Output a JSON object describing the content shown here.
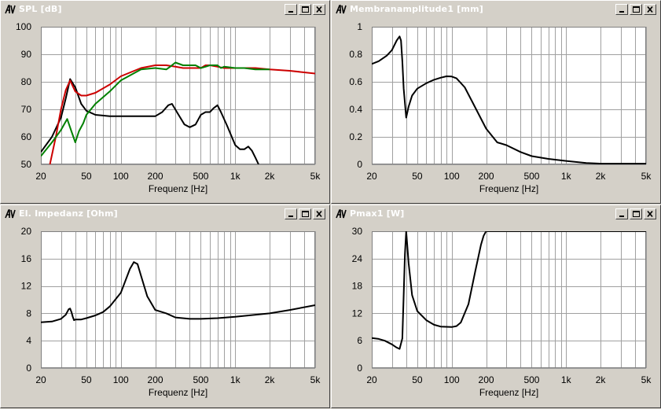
{
  "windows": [
    {
      "title": "SPL [dB]",
      "chart_data": {
        "type": "line",
        "xscale": "log",
        "xlim": [
          20,
          5000
        ],
        "ylim": [
          50,
          100
        ],
        "xlabel": "Frequenz [Hz]",
        "xticks": [
          20,
          50,
          100,
          200,
          500,
          1000,
          2000,
          5000
        ],
        "xticklabels": [
          "20",
          "50",
          "100",
          "200",
          "500",
          "1k",
          "2k",
          "5k"
        ],
        "yticks": [
          50,
          60,
          70,
          80,
          90,
          100
        ],
        "yticklabels": [
          "50",
          "60",
          "70",
          "80",
          "90",
          "100"
        ],
        "grid": true,
        "series": [
          {
            "color": "#000000",
            "x": [
              20,
              25,
              30,
              33,
              36,
              40,
              45,
              50,
              60,
              80,
              100,
              150,
              200,
              230,
              260,
              280,
              320,
              360,
              400,
              450,
              500,
              550,
              600,
              650,
              700,
              750,
              850,
              1000,
              1100,
              1200,
              1300,
              1400,
              1500,
              1600
            ],
            "y": [
              54.5,
              60.0,
              67.0,
              74.0,
              81.0,
              78.0,
              72.0,
              69.5,
              68.0,
              67.5,
              67.5,
              67.5,
              67.5,
              69.0,
              71.5,
              72.0,
              68.0,
              64.5,
              63.5,
              64.5,
              68.0,
              69.0,
              69.0,
              70.5,
              71.5,
              69.0,
              64.0,
              57.0,
              55.5,
              55.5,
              56.5,
              55.0,
              52.5,
              50.0
            ]
          },
          {
            "color": "#cc0000",
            "x": [
              24,
              27,
              30,
              33,
              36,
              40,
              45,
              50,
              60,
              80,
              100,
              150,
              200,
              250,
              300,
              350,
              400,
              450,
              500,
              550,
              600,
              700,
              800,
              1000,
              1500,
              2000,
              3000,
              5000
            ],
            "y": [
              50.0,
              60.0,
              70.0,
              77.0,
              80.5,
              76.5,
              75.0,
              75.0,
              76.0,
              79.0,
              82.0,
              85.0,
              86.0,
              86.0,
              85.5,
              85.0,
              85.0,
              85.0,
              85.0,
              86.0,
              86.0,
              85.5,
              85.0,
              85.0,
              85.0,
              84.5,
              84.0,
              83.0
            ]
          },
          {
            "color": "#008000",
            "x": [
              20,
              25,
              30,
              34,
              37,
              40,
              43,
              47,
              50,
              60,
              80,
              100,
              150,
              200,
              250,
              270,
              300,
              350,
              400,
              450,
              500,
              550,
              600,
              700,
              750,
              800,
              1000,
              1200,
              1500,
              2000
            ],
            "y": [
              53.0,
              58.0,
              62.5,
              66.5,
              62.0,
              58.0,
              62.0,
              65.0,
              68.0,
              72.0,
              76.5,
              80.5,
              84.5,
              85.0,
              84.5,
              85.5,
              87.0,
              86.0,
              86.0,
              86.0,
              85.0,
              85.5,
              86.0,
              86.0,
              85.0,
              85.5,
              85.0,
              85.0,
              84.5,
              84.5
            ]
          }
        ]
      }
    },
    {
      "title": "Membranamplitude1 [mm]",
      "chart_data": {
        "type": "line",
        "xscale": "log",
        "xlim": [
          20,
          5000
        ],
        "ylim": [
          0,
          1
        ],
        "xlabel": "Frequenz [Hz]",
        "xticks": [
          20,
          50,
          100,
          200,
          500,
          1000,
          2000,
          5000
        ],
        "xticklabels": [
          "20",
          "50",
          "100",
          "200",
          "500",
          "1k",
          "2k",
          "5k"
        ],
        "yticks": [
          0,
          0.2,
          0.4,
          0.6,
          0.8,
          1
        ],
        "yticklabels": [
          "0",
          "0.2",
          "0.4",
          "0.6",
          "0.8",
          "1"
        ],
        "grid": true,
        "series": [
          {
            "color": "#000000",
            "x": [
              20,
              23,
              27,
              30,
              33,
              35,
              36,
              37,
              38,
              40,
              42,
              45,
              50,
              60,
              70,
              80,
              90,
              100,
              110,
              130,
              150,
              200,
              250,
              300,
              400,
              500,
              700,
              1000,
              1500,
              2000,
              5000
            ],
            "y": [
              0.73,
              0.75,
              0.79,
              0.83,
              0.9,
              0.93,
              0.9,
              0.75,
              0.55,
              0.34,
              0.42,
              0.5,
              0.55,
              0.59,
              0.615,
              0.63,
              0.64,
              0.638,
              0.625,
              0.56,
              0.46,
              0.26,
              0.16,
              0.14,
              0.09,
              0.06,
              0.04,
              0.025,
              0.01,
              0.005,
              0.005
            ]
          }
        ]
      }
    },
    {
      "title": "El. Impedanz [Ohm]",
      "chart_data": {
        "type": "line",
        "xscale": "log",
        "xlim": [
          20,
          5000
        ],
        "ylim": [
          0,
          20
        ],
        "xlabel": "Frequenz [Hz]",
        "xticks": [
          20,
          50,
          100,
          200,
          500,
          1000,
          2000,
          5000
        ],
        "xticklabels": [
          "20",
          "50",
          "100",
          "200",
          "500",
          "1k",
          "2k",
          "5k"
        ],
        "yticks": [
          0,
          4,
          8,
          12,
          16,
          20
        ],
        "yticklabels": [
          "0",
          "4",
          "8",
          "12",
          "16",
          "20"
        ],
        "grid": true,
        "series": [
          {
            "color": "#000000",
            "x": [
              20,
              25,
              30,
              33,
              35,
              36,
              37,
              38,
              39,
              40,
              45,
              50,
              60,
              70,
              80,
              100,
              120,
              130,
              140,
              150,
              170,
              200,
              250,
              300,
              400,
              500,
              700,
              1000,
              2000,
              3000,
              5000
            ],
            "y": [
              6.7,
              6.8,
              7.2,
              7.8,
              8.6,
              8.7,
              8.2,
              7.5,
              7.0,
              7.1,
              7.1,
              7.3,
              7.7,
              8.2,
              9.0,
              11.0,
              14.5,
              15.5,
              15.2,
              13.5,
              10.5,
              8.5,
              8.0,
              7.4,
              7.2,
              7.2,
              7.3,
              7.5,
              8.0,
              8.5,
              9.2
            ]
          }
        ]
      }
    },
    {
      "title": "Pmax1 [W]",
      "chart_data": {
        "type": "line",
        "xscale": "log",
        "xlim": [
          20,
          5000
        ],
        "ylim": [
          0,
          30
        ],
        "xlabel": "Frequenz [Hz]",
        "xticks": [
          20,
          50,
          100,
          200,
          500,
          1000,
          2000,
          5000
        ],
        "xticklabels": [
          "20",
          "50",
          "100",
          "200",
          "500",
          "1k",
          "2k",
          "5k"
        ],
        "yticks": [
          0,
          6,
          12,
          18,
          24,
          30
        ],
        "yticklabels": [
          "0",
          "6",
          "12",
          "18",
          "24",
          "30"
        ],
        "grid": true,
        "series": [
          {
            "color": "#000000",
            "x": [
              20,
              23,
              26,
              30,
              33,
              35,
              37,
              38,
              39,
              40,
              42,
              45,
              50,
              60,
              70,
              80,
              100,
              110,
              120,
              140,
              160,
              180,
              190,
              200,
              210,
              300,
              1000,
              5000
            ],
            "y": [
              6.6,
              6.4,
              6.0,
              5.2,
              4.5,
              4.2,
              6.5,
              16.0,
              25.0,
              30.0,
              23.0,
              16.0,
              12.5,
              10.5,
              9.5,
              9.1,
              9.0,
              9.2,
              10.0,
              14.0,
              21.0,
              27.0,
              29.0,
              30.0,
              30.0,
              30.0,
              30.0,
              30.0
            ]
          }
        ]
      }
    }
  ]
}
